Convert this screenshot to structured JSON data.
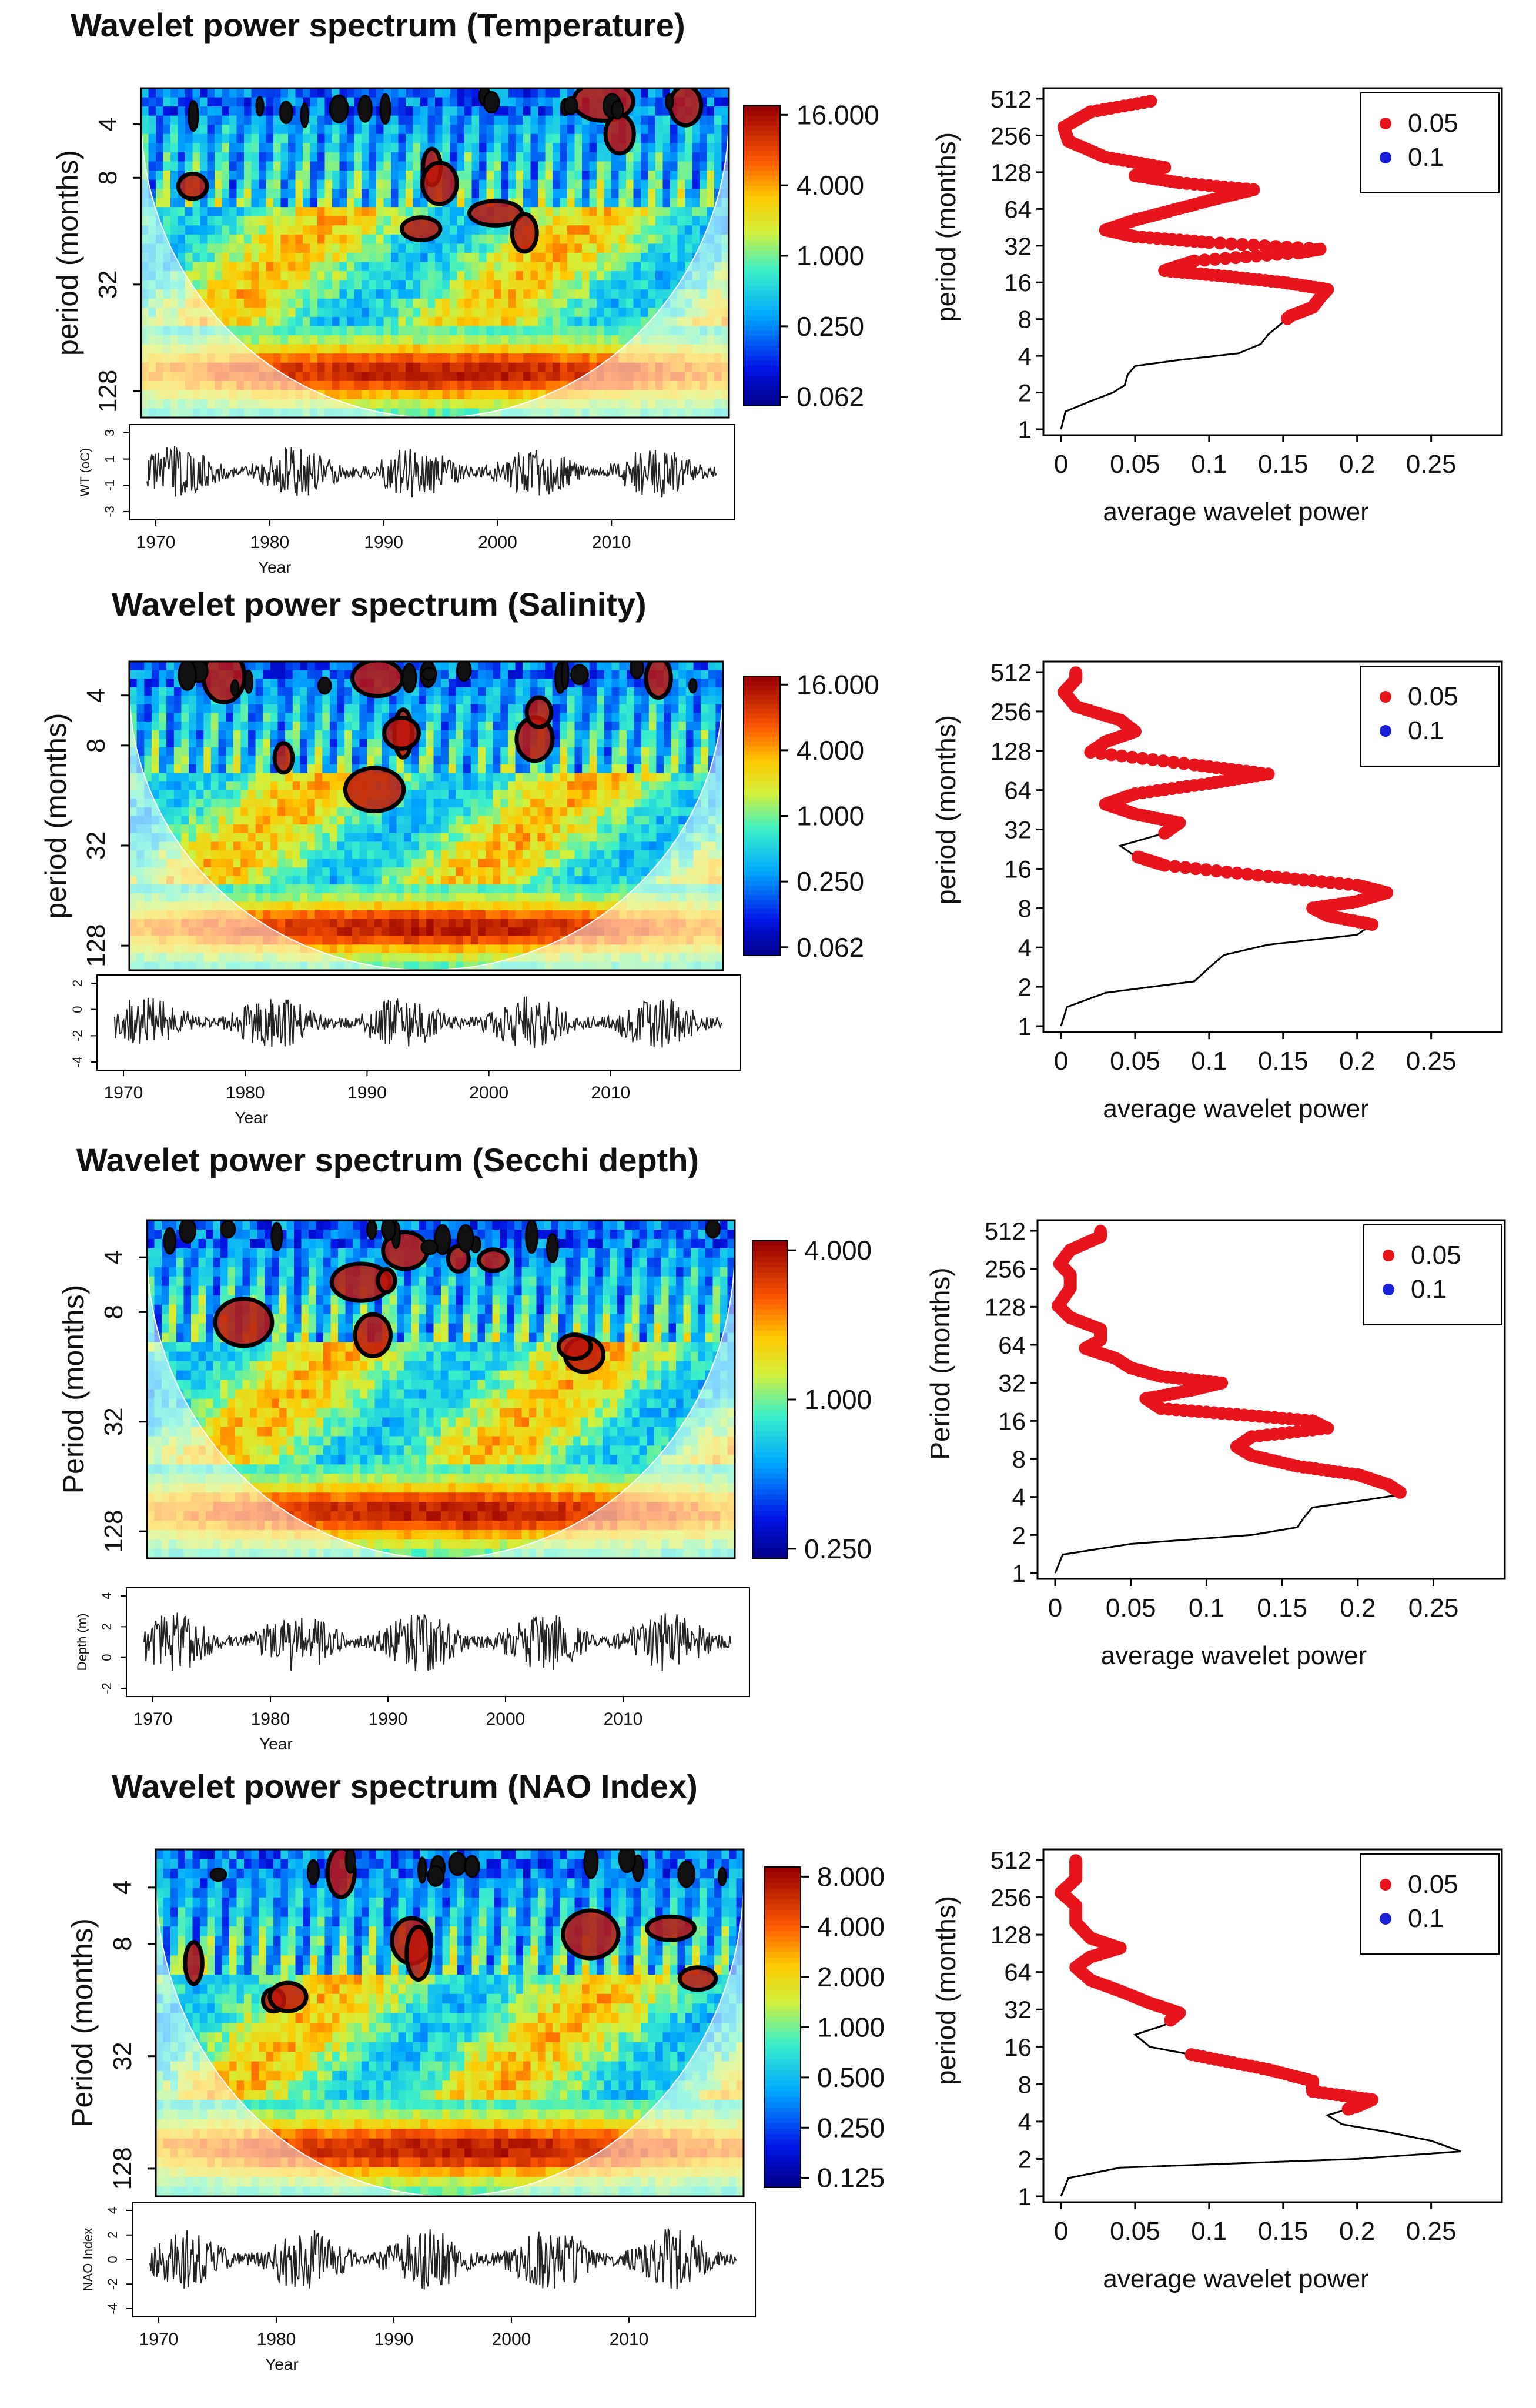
{
  "chart_data": [
    {
      "type": "heatmap",
      "title": "Wavelet power spectrum (Temperature)",
      "ylabel": "period (months)",
      "yticks": [
        "4",
        "8",
        "32",
        "128"
      ],
      "colorbar_ticks": [
        "16.000",
        "4.000",
        "1.000",
        "0.250",
        "0.062"
      ],
      "series_plot": {
        "ylabel": "WT (oC)",
        "xlabel": "Year",
        "xticks": [
          "1970",
          "1980",
          "1990",
          "2000",
          "2010"
        ],
        "yticks": [
          "3",
          "1",
          "-1",
          "-3"
        ]
      },
      "avg_power": {
        "type": "line",
        "ylabel": "period (months)",
        "xlabel": "average wavelet power",
        "xticks": [
          "0",
          "0.05",
          "0.1",
          "0.15",
          "0.2",
          "0.25"
        ],
        "yticks": [
          "512",
          "256",
          "128",
          "64",
          "32",
          "16",
          "8",
          "4",
          "2",
          "1"
        ],
        "legend": [
          {
            "label": "0.05",
            "color": "#e8141c"
          },
          {
            "label": "0.1",
            "color": "#1a20d8"
          }
        ],
        "xlim": [
          0,
          0.3
        ],
        "points": [
          [
            0.0,
            1
          ],
          [
            0.003,
            1.4
          ],
          [
            0.02,
            1.7
          ],
          [
            0.035,
            2
          ],
          [
            0.043,
            2.3
          ],
          [
            0.045,
            2.8
          ],
          [
            0.05,
            3.3
          ],
          [
            0.08,
            3.7
          ],
          [
            0.12,
            4.2
          ],
          [
            0.135,
            5
          ],
          [
            0.14,
            6
          ],
          [
            0.148,
            7.2
          ],
          [
            0.155,
            8.5
          ],
          [
            0.17,
            10
          ],
          [
            0.175,
            12
          ],
          [
            0.18,
            14
          ],
          [
            0.15,
            16
          ],
          [
            0.11,
            18
          ],
          [
            0.07,
            20
          ],
          [
            0.09,
            24
          ],
          [
            0.16,
            28
          ],
          [
            0.175,
            30
          ],
          [
            0.1,
            34
          ],
          [
            0.05,
            38
          ],
          [
            0.03,
            43
          ],
          [
            0.05,
            52
          ],
          [
            0.07,
            60
          ],
          [
            0.1,
            75
          ],
          [
            0.13,
            92
          ],
          [
            0.08,
            105
          ],
          [
            0.05,
            120
          ],
          [
            0.07,
            140
          ],
          [
            0.03,
            170
          ],
          [
            0.005,
            230
          ],
          [
            0.002,
            300
          ],
          [
            0.02,
            400
          ],
          [
            0.065,
            500
          ]
        ],
        "significant_from_period": 8
      }
    },
    {
      "type": "heatmap",
      "title": "Wavelet power spectrum (Salinity)",
      "ylabel": "period (months)",
      "yticks": [
        "4",
        "8",
        "32",
        "128"
      ],
      "colorbar_ticks": [
        "16.000",
        "4.000",
        "1.000",
        "0.250",
        "0.062"
      ],
      "series_plot": {
        "ylabel": "",
        "xlabel": "Year",
        "xticks": [
          "1970",
          "1980",
          "1990",
          "2000",
          "2010"
        ],
        "yticks": [
          "2",
          "0",
          "-2",
          "-4"
        ]
      },
      "avg_power": {
        "type": "line",
        "ylabel": "period (months)",
        "xlabel": "average wavelet power",
        "xticks": [
          "0",
          "0.05",
          "0.1",
          "0.15",
          "0.2",
          "0.25"
        ],
        "yticks": [
          "512",
          "256",
          "128",
          "64",
          "32",
          "16",
          "8",
          "4",
          "2",
          "1"
        ],
        "legend": [
          {
            "label": "0.05",
            "color": "#e8141c"
          },
          {
            "label": "0.1",
            "color": "#1a20d8"
          }
        ],
        "xlim": [
          0,
          0.3
        ],
        "points": [
          [
            0.0,
            1
          ],
          [
            0.004,
            1.4
          ],
          [
            0.03,
            1.8
          ],
          [
            0.09,
            2.2
          ],
          [
            0.1,
            2.8
          ],
          [
            0.11,
            3.5
          ],
          [
            0.14,
            4.2
          ],
          [
            0.2,
            5
          ],
          [
            0.21,
            6
          ],
          [
            0.18,
            7
          ],
          [
            0.17,
            8
          ],
          [
            0.2,
            9
          ],
          [
            0.22,
            10.5
          ],
          [
            0.2,
            12
          ],
          [
            0.14,
            14
          ],
          [
            0.07,
            17
          ],
          [
            0.05,
            20
          ],
          [
            0.04,
            24
          ],
          [
            0.07,
            30
          ],
          [
            0.08,
            36
          ],
          [
            0.05,
            42
          ],
          [
            0.03,
            50
          ],
          [
            0.05,
            60
          ],
          [
            0.1,
            72
          ],
          [
            0.14,
            85
          ],
          [
            0.09,
            100
          ],
          [
            0.02,
            125
          ],
          [
            0.03,
            150
          ],
          [
            0.05,
            180
          ],
          [
            0.04,
            220
          ],
          [
            0.01,
            280
          ],
          [
            0.002,
            360
          ],
          [
            0.01,
            450
          ],
          [
            0.01,
            512
          ]
        ],
        "significant_ranges": [
          [
            6,
            20
          ],
          [
            30,
            512
          ]
        ]
      }
    },
    {
      "type": "heatmap",
      "title": "Wavelet power spectrum (Secchi depth)",
      "ylabel": "Period (months)",
      "yticks": [
        "4",
        "8",
        "32",
        "128"
      ],
      "colorbar_ticks": [
        "4.000",
        "1.000",
        "0.250"
      ],
      "series_plot": {
        "ylabel": "Depth (m)",
        "xlabel": "Year",
        "xticks": [
          "1970",
          "1980",
          "1990",
          "2000",
          "2010"
        ],
        "yticks": [
          "4",
          "2",
          "0",
          "-2"
        ]
      },
      "avg_power": {
        "type": "line",
        "ylabel": "Period (months)",
        "xlabel": "average wavelet power",
        "xticks": [
          "0",
          "0.05",
          "0.1",
          "0.15",
          "0.2",
          "0.25"
        ],
        "yticks": [
          "512",
          "256",
          "128",
          "64",
          "32",
          "16",
          "8",
          "4",
          "2",
          "1"
        ],
        "legend": [
          {
            "label": "0.05",
            "color": "#e8141c"
          },
          {
            "label": "0.1",
            "color": "#1a20d8"
          }
        ],
        "xlim": [
          0,
          0.3
        ],
        "points": [
          [
            0.0,
            1
          ],
          [
            0.005,
            1.4
          ],
          [
            0.05,
            1.7
          ],
          [
            0.13,
            2
          ],
          [
            0.16,
            2.3
          ],
          [
            0.165,
            2.8
          ],
          [
            0.17,
            3.3
          ],
          [
            0.2,
            3.7
          ],
          [
            0.23,
            4.2
          ],
          [
            0.22,
            5
          ],
          [
            0.2,
            6
          ],
          [
            0.16,
            7
          ],
          [
            0.13,
            8.5
          ],
          [
            0.12,
            10
          ],
          [
            0.13,
            12
          ],
          [
            0.18,
            14
          ],
          [
            0.17,
            16
          ],
          [
            0.12,
            18
          ],
          [
            0.07,
            20
          ],
          [
            0.06,
            24
          ],
          [
            0.09,
            28
          ],
          [
            0.11,
            32
          ],
          [
            0.07,
            36
          ],
          [
            0.05,
            42
          ],
          [
            0.04,
            50
          ],
          [
            0.02,
            60
          ],
          [
            0.03,
            70
          ],
          [
            0.03,
            85
          ],
          [
            0.01,
            105
          ],
          [
            0.002,
            130
          ],
          [
            0.01,
            180
          ],
          [
            0.01,
            230
          ],
          [
            0.003,
            280
          ],
          [
            0.01,
            360
          ],
          [
            0.03,
            460
          ],
          [
            0.03,
            512
          ]
        ],
        "significant_from_period": 4.3
      }
    },
    {
      "type": "heatmap",
      "title": "Wavelet power spectrum (NAO Index)",
      "ylabel": "Period (months)",
      "yticks": [
        "4",
        "8",
        "32",
        "128"
      ],
      "colorbar_ticks": [
        "8.000",
        "4.000",
        "2.000",
        "1.000",
        "0.500",
        "0.250",
        "0.125"
      ],
      "series_plot": {
        "ylabel": "NAO Index",
        "xlabel": "Year",
        "xticks": [
          "1970",
          "1980",
          "1990",
          "2000",
          "2010"
        ],
        "yticks": [
          "4",
          "2",
          "0",
          "-2",
          "-4"
        ]
      },
      "avg_power": {
        "type": "line",
        "ylabel": "period (months)",
        "xlabel": "average wavelet power",
        "xticks": [
          "0",
          "0.05",
          "0.1",
          "0.15",
          "0.2",
          "0.25"
        ],
        "yticks": [
          "512",
          "256",
          "128",
          "64",
          "32",
          "16",
          "8",
          "4",
          "2",
          "1"
        ],
        "legend": [
          {
            "label": "0.05",
            "color": "#e8141c"
          },
          {
            "label": "0.1",
            "color": "#1a20d8"
          }
        ],
        "xlim": [
          0,
          0.3
        ],
        "points": [
          [
            0.0,
            1
          ],
          [
            0.005,
            1.4
          ],
          [
            0.04,
            1.7
          ],
          [
            0.2,
            2
          ],
          [
            0.27,
            2.3
          ],
          [
            0.25,
            2.8
          ],
          [
            0.22,
            3.3
          ],
          [
            0.19,
            3.8
          ],
          [
            0.18,
            4.5
          ],
          [
            0.2,
            5.3
          ],
          [
            0.21,
            6
          ],
          [
            0.17,
            7
          ],
          [
            0.17,
            8.5
          ],
          [
            0.14,
            10.5
          ],
          [
            0.1,
            13
          ],
          [
            0.06,
            16
          ],
          [
            0.05,
            20
          ],
          [
            0.07,
            24
          ],
          [
            0.08,
            30
          ],
          [
            0.06,
            36
          ],
          [
            0.04,
            45
          ],
          [
            0.02,
            55
          ],
          [
            0.01,
            70
          ],
          [
            0.02,
            85
          ],
          [
            0.04,
            100
          ],
          [
            0.02,
            120
          ],
          [
            0.01,
            160
          ],
          [
            0.01,
            220
          ],
          [
            0.0,
            280
          ],
          [
            0.01,
            360
          ],
          [
            0.01,
            450
          ],
          [
            0.01,
            512
          ]
        ],
        "significant_ranges": [
          [
            5,
            14
          ],
          [
            26,
            512
          ]
        ]
      }
    }
  ]
}
